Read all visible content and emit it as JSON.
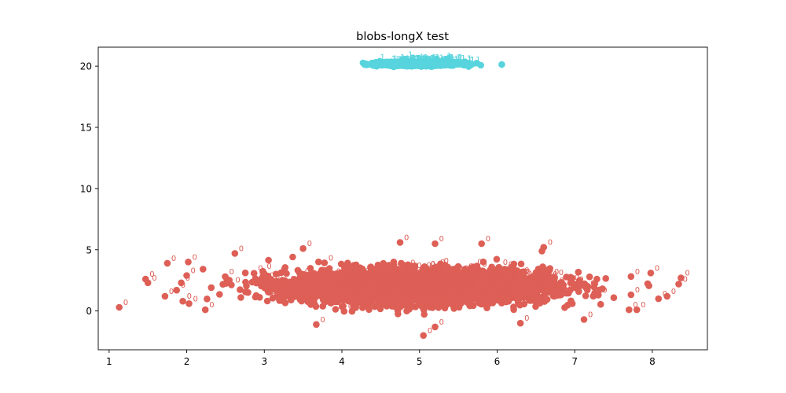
{
  "chart_data": {
    "type": "scatter",
    "title": "blobs-longX test",
    "xlabel": "",
    "ylabel": "",
    "xlim": [
      0.86,
      8.71
    ],
    "ylim": [
      -3.17,
      21.55
    ],
    "xticks": [
      1,
      2,
      3,
      4,
      5,
      6,
      7,
      8
    ],
    "yticks": [
      0,
      5,
      10,
      15,
      20
    ],
    "grid": false,
    "series": [
      {
        "label": "0",
        "color": "#dd5f56",
        "center": [
          5.0,
          2.0
        ],
        "spread": [
          1.1,
          0.9
        ],
        "count": 4000,
        "outliers": [
          [
            1.13,
            0.3
          ],
          [
            1.47,
            2.6
          ],
          [
            1.5,
            2.3
          ],
          [
            1.72,
            1.2
          ],
          [
            1.75,
            3.9
          ],
          [
            1.93,
            2.3
          ],
          [
            1.95,
            0.8
          ],
          [
            2.02,
            4.0
          ],
          [
            2.03,
            0.6
          ],
          [
            2.24,
            0.1
          ],
          [
            2.0,
            2.9
          ],
          [
            1.87,
            1.7
          ],
          [
            2.62,
            4.7
          ],
          [
            8.08,
            1.0
          ],
          [
            8.19,
            1.2
          ],
          [
            8.34,
            2.2
          ],
          [
            8.37,
            2.7
          ],
          [
            7.98,
            3.1
          ],
          [
            7.8,
            0.1
          ],
          [
            7.7,
            0.1
          ],
          [
            7.12,
            -0.7
          ],
          [
            5.05,
            -2.0
          ],
          [
            3.67,
            -1.1
          ],
          [
            5.2,
            -1.3
          ],
          [
            6.3,
            -1.0
          ],
          [
            4.75,
            5.6
          ],
          [
            5.2,
            5.5
          ],
          [
            5.8,
            5.5
          ],
          [
            6.6,
            5.2
          ],
          [
            3.5,
            5.1
          ]
        ]
      },
      {
        "label": "1",
        "color": "#57d4dd",
        "center": [
          5.0,
          20.2
        ],
        "spread": [
          0.33,
          0.1
        ],
        "count": 1500,
        "outliers": [
          [
            4.67,
            19.95
          ],
          [
            5.45,
            20.3
          ],
          [
            4.8,
            20.55
          ],
          [
            5.3,
            20.45
          ]
        ]
      }
    ]
  }
}
